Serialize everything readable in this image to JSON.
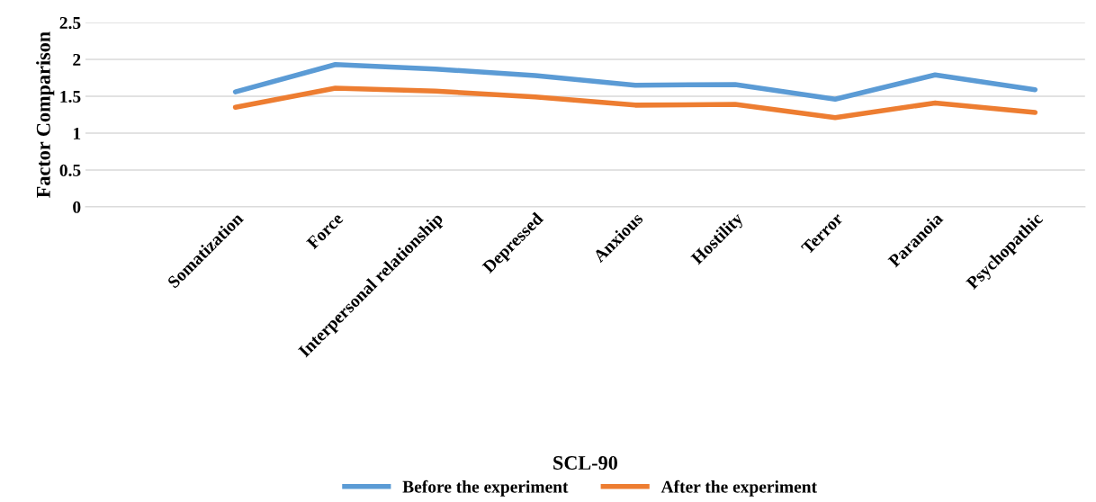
{
  "chart_data": {
    "type": "line",
    "xlabel": "SCL-90",
    "ylabel": "Factor Comparison",
    "categories": [
      null,
      "Somatization",
      "Force",
      "Interpersonal relationship",
      "Depressed",
      "Anxious",
      "Hostility",
      "Terror",
      "Paranoia",
      "Psychopathic"
    ],
    "series": [
      {
        "name": "Before the experiment",
        "color": "#5b9bd5",
        "values": [
          null,
          1.56,
          1.93,
          1.87,
          1.78,
          1.65,
          1.66,
          1.46,
          1.79,
          1.59
        ]
      },
      {
        "name": "After the experiment",
        "color": "#ed7d31",
        "values": [
          null,
          1.35,
          1.61,
          1.57,
          1.49,
          1.38,
          1.39,
          1.21,
          1.41,
          1.28
        ]
      }
    ],
    "ylim": [
      0,
      2.5
    ],
    "yticks": [
      {
        "value": 0,
        "label": "0"
      },
      {
        "value": 0.5,
        "label": "0.5"
      },
      {
        "value": 1,
        "label": "1"
      },
      {
        "value": 1.5,
        "label": "1.5"
      },
      {
        "value": 2,
        "label": "2"
      },
      {
        "value": 2.5,
        "label": "2.5"
      }
    ],
    "grid": "y",
    "legend": "bottom",
    "marker": "none",
    "line_style": "solid"
  }
}
